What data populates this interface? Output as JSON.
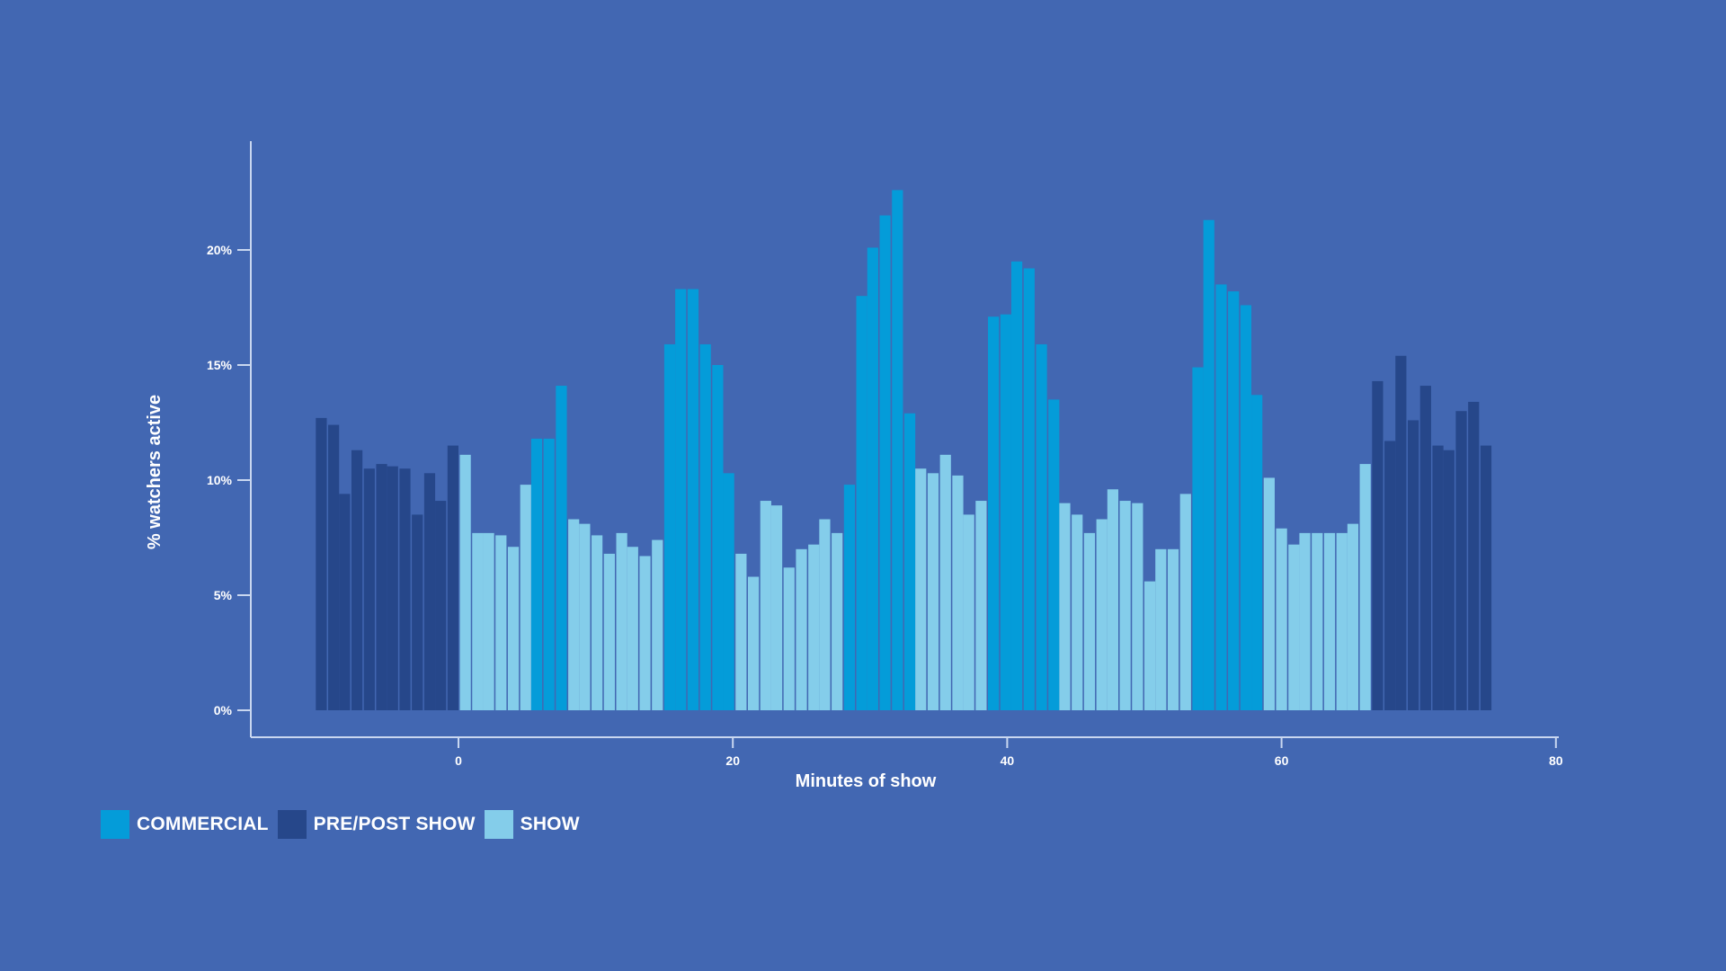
{
  "colors": {
    "background": "#4267b2",
    "axis": "#c9d7f0",
    "commercial": "#049cd9",
    "pre_post_show": "#26478a",
    "show": "#84cdea"
  },
  "chart_data": {
    "type": "bar",
    "xlabel": "Minutes of show",
    "ylabel": "% watchers active",
    "xlim": [
      -15,
      80
    ],
    "ylim": [
      0,
      25
    ],
    "x_ticks": [
      0,
      20,
      40,
      60,
      80
    ],
    "y_ticks": [
      0,
      5,
      10,
      15,
      20
    ],
    "y_tick_labels": [
      "0%",
      "5%",
      "10%",
      "15%",
      "20%"
    ],
    "grid": false,
    "legend_position": "bottom-left",
    "series": [
      {
        "name": "COMMERCIAL",
        "key": "commercial"
      },
      {
        "name": "PRE/POST SHOW",
        "key": "pre_post_show"
      },
      {
        "name": "SHOW",
        "key": "show"
      }
    ],
    "bar_width_minutes": 0.8,
    "bars": [
      {
        "x": -10.0,
        "y": 12.7,
        "s": "pre_post_show"
      },
      {
        "x": -9.1,
        "y": 12.4,
        "s": "pre_post_show"
      },
      {
        "x": -8.3,
        "y": 9.4,
        "s": "pre_post_show"
      },
      {
        "x": -7.4,
        "y": 11.3,
        "s": "pre_post_show"
      },
      {
        "x": -6.5,
        "y": 10.5,
        "s": "pre_post_show"
      },
      {
        "x": -5.6,
        "y": 10.7,
        "s": "pre_post_show"
      },
      {
        "x": -4.8,
        "y": 10.6,
        "s": "pre_post_show"
      },
      {
        "x": -3.9,
        "y": 10.5,
        "s": "pre_post_show"
      },
      {
        "x": -3.0,
        "y": 8.5,
        "s": "pre_post_show"
      },
      {
        "x": -2.1,
        "y": 10.3,
        "s": "pre_post_show"
      },
      {
        "x": -1.3,
        "y": 9.1,
        "s": "pre_post_show"
      },
      {
        "x": -0.4,
        "y": 11.5,
        "s": "pre_post_show"
      },
      {
        "x": 0.5,
        "y": 11.1,
        "s": "show"
      },
      {
        "x": 1.4,
        "y": 7.7,
        "s": "show"
      },
      {
        "x": 2.2,
        "y": 7.7,
        "s": "show"
      },
      {
        "x": 3.1,
        "y": 7.6,
        "s": "show"
      },
      {
        "x": 4.0,
        "y": 7.1,
        "s": "show"
      },
      {
        "x": 4.9,
        "y": 9.8,
        "s": "show"
      },
      {
        "x": 5.7,
        "y": 11.8,
        "s": "commercial"
      },
      {
        "x": 6.6,
        "y": 11.8,
        "s": "commercial"
      },
      {
        "x": 7.5,
        "y": 14.1,
        "s": "commercial"
      },
      {
        "x": 8.4,
        "y": 8.3,
        "s": "show"
      },
      {
        "x": 9.2,
        "y": 8.1,
        "s": "show"
      },
      {
        "x": 10.1,
        "y": 7.6,
        "s": "show"
      },
      {
        "x": 11.0,
        "y": 6.8,
        "s": "show"
      },
      {
        "x": 11.9,
        "y": 7.7,
        "s": "show"
      },
      {
        "x": 12.7,
        "y": 7.1,
        "s": "show"
      },
      {
        "x": 13.6,
        "y": 6.7,
        "s": "show"
      },
      {
        "x": 14.5,
        "y": 7.4,
        "s": "show"
      },
      {
        "x": 15.4,
        "y": 15.9,
        "s": "commercial"
      },
      {
        "x": 16.2,
        "y": 18.3,
        "s": "commercial"
      },
      {
        "x": 17.1,
        "y": 18.3,
        "s": "commercial"
      },
      {
        "x": 18.0,
        "y": 15.9,
        "s": "commercial"
      },
      {
        "x": 18.9,
        "y": 15.0,
        "s": "commercial"
      },
      {
        "x": 19.7,
        "y": 10.3,
        "s": "commercial"
      },
      {
        "x": 20.6,
        "y": 6.8,
        "s": "show"
      },
      {
        "x": 21.5,
        "y": 5.8,
        "s": "show"
      },
      {
        "x": 22.4,
        "y": 9.1,
        "s": "show"
      },
      {
        "x": 23.2,
        "y": 8.9,
        "s": "show"
      },
      {
        "x": 24.1,
        "y": 6.2,
        "s": "show"
      },
      {
        "x": 25.0,
        "y": 7.0,
        "s": "show"
      },
      {
        "x": 25.9,
        "y": 7.2,
        "s": "show"
      },
      {
        "x": 26.7,
        "y": 8.3,
        "s": "show"
      },
      {
        "x": 27.6,
        "y": 7.7,
        "s": "show"
      },
      {
        "x": 28.5,
        "y": 9.8,
        "s": "commercial"
      },
      {
        "x": 29.4,
        "y": 18.0,
        "s": "commercial"
      },
      {
        "x": 30.2,
        "y": 20.1,
        "s": "commercial"
      },
      {
        "x": 31.1,
        "y": 21.5,
        "s": "commercial"
      },
      {
        "x": 32.0,
        "y": 22.6,
        "s": "commercial"
      },
      {
        "x": 32.9,
        "y": 12.9,
        "s": "commercial"
      },
      {
        "x": 33.7,
        "y": 10.5,
        "s": "show"
      },
      {
        "x": 34.6,
        "y": 10.3,
        "s": "show"
      },
      {
        "x": 35.5,
        "y": 11.1,
        "s": "show"
      },
      {
        "x": 36.4,
        "y": 10.2,
        "s": "show"
      },
      {
        "x": 37.2,
        "y": 8.5,
        "s": "show"
      },
      {
        "x": 38.1,
        "y": 9.1,
        "s": "show"
      },
      {
        "x": 39.0,
        "y": 17.1,
        "s": "commercial"
      },
      {
        "x": 39.9,
        "y": 17.2,
        "s": "commercial"
      },
      {
        "x": 40.7,
        "y": 19.5,
        "s": "commercial"
      },
      {
        "x": 41.6,
        "y": 19.2,
        "s": "commercial"
      },
      {
        "x": 42.5,
        "y": 15.9,
        "s": "commercial"
      },
      {
        "x": 43.4,
        "y": 13.5,
        "s": "commercial"
      },
      {
        "x": 44.2,
        "y": 9.0,
        "s": "show"
      },
      {
        "x": 45.1,
        "y": 8.5,
        "s": "show"
      },
      {
        "x": 46.0,
        "y": 7.7,
        "s": "show"
      },
      {
        "x": 46.9,
        "y": 8.3,
        "s": "show"
      },
      {
        "x": 47.7,
        "y": 9.6,
        "s": "show"
      },
      {
        "x": 48.6,
        "y": 9.1,
        "s": "show"
      },
      {
        "x": 49.5,
        "y": 9.0,
        "s": "show"
      },
      {
        "x": 50.4,
        "y": 5.6,
        "s": "show"
      },
      {
        "x": 51.2,
        "y": 7.0,
        "s": "show"
      },
      {
        "x": 52.1,
        "y": 7.0,
        "s": "show"
      },
      {
        "x": 53.0,
        "y": 9.4,
        "s": "show"
      },
      {
        "x": 53.9,
        "y": 14.9,
        "s": "commercial"
      },
      {
        "x": 54.7,
        "y": 21.3,
        "s": "commercial"
      },
      {
        "x": 55.6,
        "y": 18.5,
        "s": "commercial"
      },
      {
        "x": 56.5,
        "y": 18.2,
        "s": "commercial"
      },
      {
        "x": 57.4,
        "y": 17.6,
        "s": "commercial"
      },
      {
        "x": 58.2,
        "y": 13.7,
        "s": "commercial"
      },
      {
        "x": 59.1,
        "y": 10.1,
        "s": "show"
      },
      {
        "x": 60.0,
        "y": 7.9,
        "s": "show"
      },
      {
        "x": 60.9,
        "y": 7.2,
        "s": "show"
      },
      {
        "x": 61.7,
        "y": 7.7,
        "s": "show"
      },
      {
        "x": 62.6,
        "y": 7.7,
        "s": "show"
      },
      {
        "x": 63.5,
        "y": 7.7,
        "s": "show"
      },
      {
        "x": 64.4,
        "y": 7.7,
        "s": "show"
      },
      {
        "x": 65.2,
        "y": 8.1,
        "s": "show"
      },
      {
        "x": 66.1,
        "y": 10.7,
        "s": "show"
      },
      {
        "x": 67.0,
        "y": 14.3,
        "s": "pre_post_show"
      },
      {
        "x": 67.9,
        "y": 11.7,
        "s": "pre_post_show"
      },
      {
        "x": 68.7,
        "y": 15.4,
        "s": "pre_post_show"
      },
      {
        "x": 69.6,
        "y": 12.6,
        "s": "pre_post_show"
      },
      {
        "x": 70.5,
        "y": 14.1,
        "s": "pre_post_show"
      },
      {
        "x": 71.4,
        "y": 11.5,
        "s": "pre_post_show"
      },
      {
        "x": 72.2,
        "y": 11.3,
        "s": "pre_post_show"
      },
      {
        "x": 73.1,
        "y": 13.0,
        "s": "pre_post_show"
      },
      {
        "x": 74.0,
        "y": 13.4,
        "s": "pre_post_show"
      },
      {
        "x": 74.9,
        "y": 11.5,
        "s": "pre_post_show"
      }
    ]
  }
}
